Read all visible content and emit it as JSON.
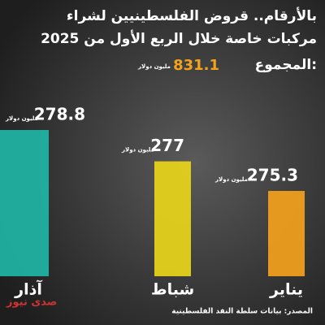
{
  "chart_data": {
    "type": "bar",
    "title_lines": [
      "بالأرقام.. قروض الفلسطينيين لشراء",
      "مركبات خاصة خلال الربع الأول من 2025"
    ],
    "total_label": "المجموع:",
    "total": 831.1,
    "unit": "مليون دولار",
    "categories": [
      "يناير",
      "شباط",
      "آذار"
    ],
    "values": [
      275.3,
      277,
      278.8
    ],
    "colors": [
      "#f3a21c",
      "#e8d51a",
      "#1fb5a6"
    ],
    "source": "المصدر: بيانات سلطة النقد الفلسطينية",
    "logo": "صدى نيوز"
  }
}
